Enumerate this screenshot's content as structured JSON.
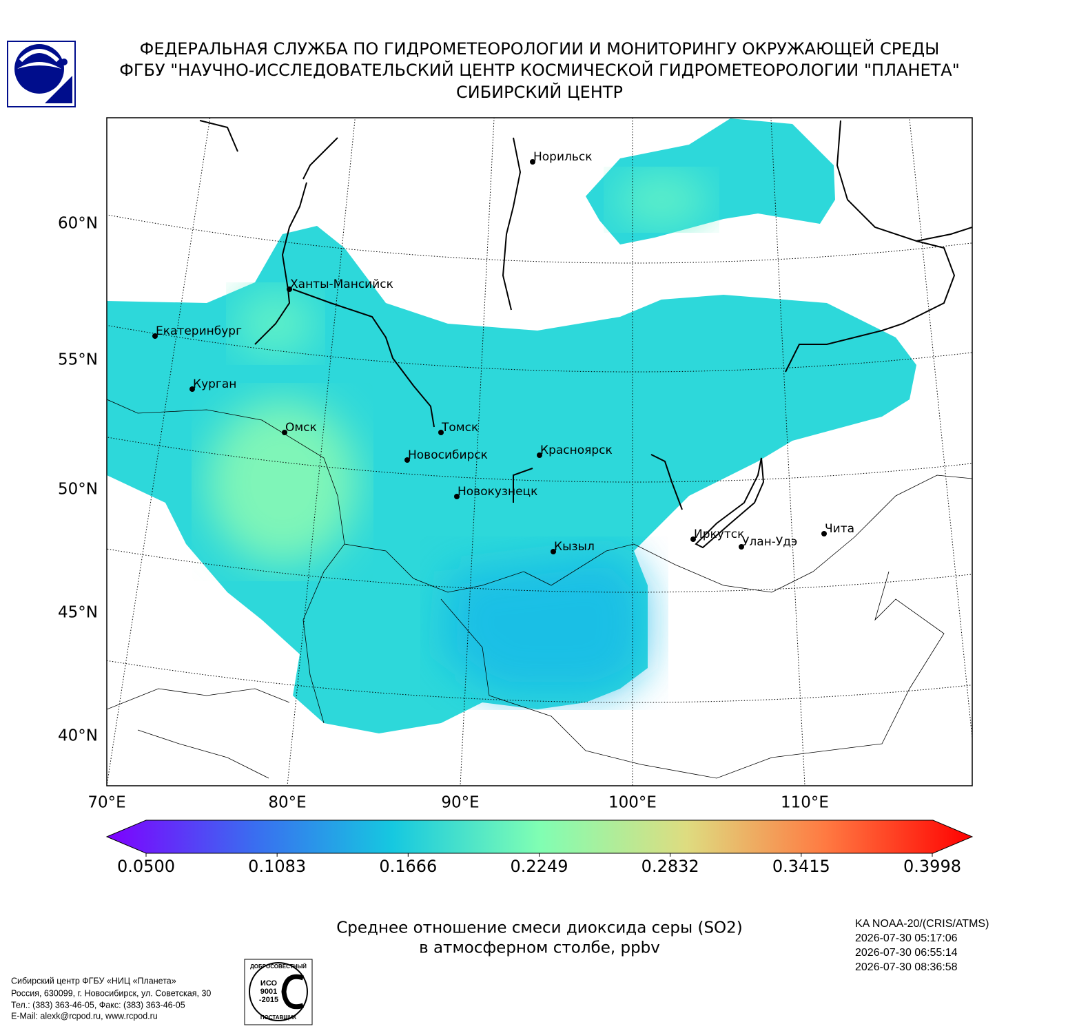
{
  "header": {
    "lines": [
      "ФЕДЕРАЛЬНАЯ СЛУЖБА ПО ГИДРОМЕТЕОРОЛОГИИ И МОНИТОРИНГУ ОКРУЖАЮЩЕЙ СРЕДЫ",
      "ФГБУ \"НАУЧНО-ИССЛЕДОВАТЕЛЬСКИЙ ЦЕНТР КОСМИЧЕСКОЙ ГИДРОМЕТЕОРОЛОГИИ \"ПЛАНЕТА\"",
      "СИБИРСКИЙ ЦЕНТР"
    ]
  },
  "map": {
    "lat_labels": [
      "60°N",
      "55°N",
      "50°N",
      "45°N",
      "40°N"
    ],
    "lon_labels": [
      "70°E",
      "80°E",
      "90°E",
      "100°E",
      "110°E"
    ],
    "cities": [
      "Норильск",
      "Ханты-Мансийск",
      "Екатеринбург",
      "Курган",
      "Омск",
      "Томск",
      "Новосибирск",
      "Красноярск",
      "Новокузнецк",
      "Кызыл",
      "Иркутск",
      "Улан-Удэ",
      "Чита"
    ]
  },
  "colorbar": {
    "ticks": [
      "0.0500",
      "0.1083",
      "0.1666",
      "0.2249",
      "0.2832",
      "0.3415",
      "0.3998"
    ]
  },
  "caption": {
    "lines": [
      "Среднее отношение смеси диоксида серы (SO2)",
      "в атмосферном столбе, ppbv"
    ]
  },
  "satellite": {
    "lines": [
      "KA NOAA-20/(CRIS/ATMS)",
      "2026-07-30 05:17:06",
      "2026-07-30 06:55:14",
      "2026-07-30 08:36:58"
    ]
  },
  "footer": {
    "lines": [
      "Сибирский центр ФГБУ «НИЦ «Планета»",
      "Россия, 630099, г. Новосибирск, ул. Советская, 30",
      "Тел.: (383) 363-46-05, Факс: (383) 363-46-05",
      "E-Mail: alexk@rcpod.ru, www.rcpod.ru"
    ]
  },
  "iso_logo": {
    "top": "ДОБРОСОВЕСТНЫЙ",
    "lines": [
      "ИСО",
      "9001",
      "-2015"
    ],
    "bottom": "ПОСТАВЩИК"
  }
}
